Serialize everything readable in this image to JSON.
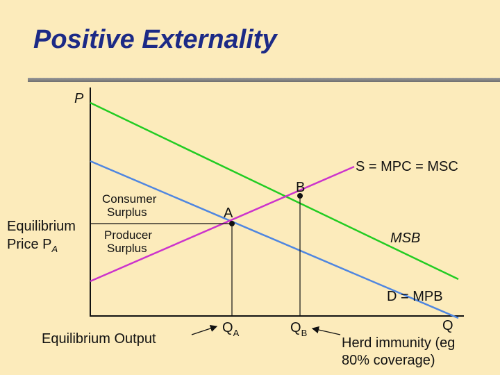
{
  "slide": {
    "title": "Positive Externality"
  },
  "diagram": {
    "axis_labels": {
      "y": "P",
      "x": "Q"
    },
    "curve_labels": {
      "supply": "S = MPC = MSC",
      "msb": "MSB",
      "demand": "D = MPB"
    },
    "points": {
      "a": "A",
      "b": "B"
    },
    "quantity_labels": {
      "qa": "Q",
      "qa_sub": "A",
      "qb": "Q",
      "qb_sub": "B"
    },
    "surplus_labels": {
      "consumer_line1": "Consumer",
      "consumer_line2": "Surplus",
      "producer_line1": "Producer",
      "producer_line2": "Surplus"
    },
    "equilibrium_price": {
      "line1": "Equilibrium",
      "line2": "Price P",
      "sub": "A"
    },
    "equilibrium_output": "Equilibrium Output",
    "herd_note": {
      "line1": "Herd immunity (eg",
      "line2": "80% coverage)"
    },
    "colors": {
      "msb": "#22cc22",
      "demand": "#4f86e0",
      "supply": "#cc33cc",
      "axes": "#111111"
    }
  }
}
